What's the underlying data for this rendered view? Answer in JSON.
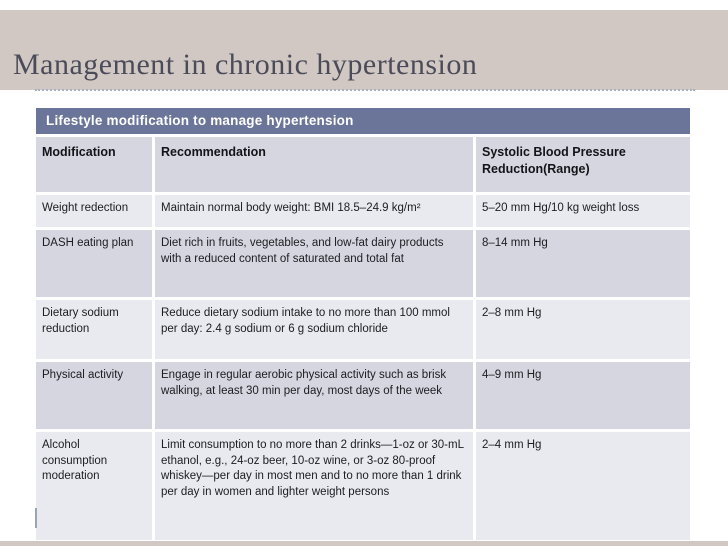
{
  "slide": {
    "title": "Management in chronic hypertension"
  },
  "table": {
    "caption": "Lifestyle modification to manage hypertension",
    "columns": [
      "Modification",
      "Recommendation",
      "Systolic Blood Pressure Reduction(Range)"
    ],
    "rows": [
      {
        "modification": "Weight redection",
        "recommendation": "Maintain normal body weight: BMI 18.5–24.9 kg/m²",
        "reduction": "5–20 mm Hg/10 kg weight loss"
      },
      {
        "modification": "DASH eating plan",
        "recommendation": "Diet rich in fruits, vegetables, and low-fat dairy products with a reduced content of saturated and total fat",
        "reduction": "8–14 mm Hg"
      },
      {
        "modification": "Dietary sodium reduction",
        "recommendation": "Reduce dietary sodium intake to no more than 100 mmol per day: 2.4 g sodium or 6 g sodium chloride",
        "reduction": "2–8 mm Hg"
      },
      {
        "modification": "Physical activity",
        "recommendation": "Engage in regular aerobic physical activity such as brisk walking, at least 30 min per day, most days of the week",
        "reduction": "4–9 mm Hg"
      },
      {
        "modification": "Alcohol consumption moderation",
        "recommendation": "Limit consumption to no more than 2 drinks—1-oz or 30-mL ethanol, e.g., 24-oz beer, 10-oz wine, or 3-oz 80-proof whiskey—per day in most men and to no more than 1 drink per day in women and lighter weight persons",
        "reduction": "2–4 mm Hg"
      }
    ]
  },
  "colors": {
    "banner_beige": "#d1c8c4",
    "caption_slate": "#6b7499",
    "row_light": "#e9eaef",
    "row_dark": "#d5d6e0",
    "title_text": "#4b4b59"
  }
}
